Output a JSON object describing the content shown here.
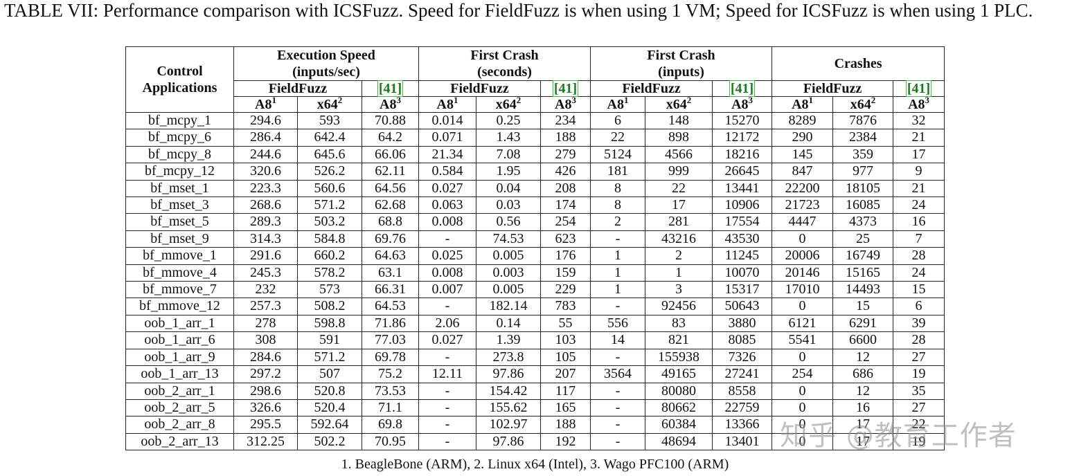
{
  "caption": "TABLE VII: Performance comparison with ICSFuzz. Speed for FieldFuzz is when using 1 VM; Speed for ICSFuzz is when using 1 PLC.",
  "table": {
    "row_header": "Control Applications",
    "groups": [
      {
        "title": "Execution Speed (inputs/sec)",
        "fieldfuzz": "FieldFuzz",
        "ref": "[41]"
      },
      {
        "title": "First Crash (seconds)",
        "fieldfuzz": "FieldFuzz",
        "ref": "[41]"
      },
      {
        "title": "First Crash (inputs)",
        "fieldfuzz": "FieldFuzz",
        "ref": "[41]"
      },
      {
        "title": "Crashes",
        "fieldfuzz": "FieldFuzz",
        "ref": "[41]"
      }
    ],
    "platforms": [
      {
        "name": "A8",
        "sup": "1"
      },
      {
        "name": "x64",
        "sup": "2"
      },
      {
        "name": "A8",
        "sup": "3"
      }
    ],
    "rows": [
      [
        "bf_mcpy_1",
        "294.6",
        "593",
        "70.88",
        "0.014",
        "0.25",
        "234",
        "6",
        "148",
        "15270",
        "8289",
        "7876",
        "32"
      ],
      [
        "bf_mcpy_6",
        "286.4",
        "642.4",
        "64.2",
        "0.071",
        "1.43",
        "188",
        "22",
        "898",
        "12172",
        "290",
        "2384",
        "21"
      ],
      [
        "bf_mcpy_8",
        "244.6",
        "645.6",
        "66.06",
        "21.34",
        "7.08",
        "279",
        "5124",
        "4566",
        "18216",
        "145",
        "359",
        "17"
      ],
      [
        "bf_mcpy_12",
        "320.6",
        "526.2",
        "62.11",
        "0.584",
        "1.95",
        "426",
        "181",
        "999",
        "26645",
        "847",
        "977",
        "9"
      ],
      [
        "bf_mset_1",
        "223.3",
        "560.6",
        "64.56",
        "0.027",
        "0.04",
        "208",
        "8",
        "22",
        "13441",
        "22200",
        "18105",
        "21"
      ],
      [
        "bf_mset_3",
        "268.6",
        "571.2",
        "62.68",
        "0.063",
        "0.03",
        "174",
        "8",
        "17",
        "10906",
        "21723",
        "16085",
        "24"
      ],
      [
        "bf_mset_5",
        "289.3",
        "503.2",
        "68.8",
        "0.008",
        "0.56",
        "254",
        "2",
        "281",
        "17554",
        "4447",
        "4373",
        "16"
      ],
      [
        "bf_mset_9",
        "314.3",
        "584.8",
        "69.76",
        "-",
        "74.53",
        "623",
        "-",
        "43216",
        "43530",
        "0",
        "25",
        "7"
      ],
      [
        "bf_mmove_1",
        "291.6",
        "660.2",
        "64.63",
        "0.025",
        "0.005",
        "176",
        "1",
        "2",
        "11245",
        "20006",
        "16749",
        "28"
      ],
      [
        "bf_mmove_4",
        "245.3",
        "578.2",
        "63.1",
        "0.008",
        "0.003",
        "159",
        "1",
        "1",
        "10070",
        "20146",
        "15165",
        "24"
      ],
      [
        "bf_mmove_7",
        "232",
        "573",
        "66.31",
        "0.007",
        "0.005",
        "229",
        "1",
        "3",
        "15317",
        "17010",
        "14493",
        "15"
      ],
      [
        "bf_mmove_12",
        "257.3",
        "508.2",
        "64.53",
        "-",
        "182.14",
        "783",
        "-",
        "92456",
        "50643",
        "0",
        "15",
        "6"
      ],
      [
        "oob_1_arr_1",
        "278",
        "598.8",
        "71.86",
        "2.06",
        "0.14",
        "55",
        "556",
        "83",
        "3880",
        "6121",
        "6291",
        "39"
      ],
      [
        "oob_1_arr_6",
        "308",
        "591",
        "77.03",
        "0.027",
        "1.39",
        "103",
        "14",
        "821",
        "8085",
        "5541",
        "6600",
        "28"
      ],
      [
        "oob_1_arr_9",
        "284.6",
        "571.2",
        "69.78",
        "-",
        "273.8",
        "105",
        "-",
        "155938",
        "7326",
        "0",
        "12",
        "27"
      ],
      [
        "oob_1_arr_13",
        "297.2",
        "507",
        "75.2",
        "12.11",
        "97.86",
        "207",
        "3564",
        "49165",
        "27241",
        "254",
        "686",
        "19"
      ],
      [
        "oob_2_arr_1",
        "298.6",
        "520.8",
        "73.53",
        "-",
        "154.42",
        "117",
        "-",
        "80080",
        "8558",
        "0",
        "12",
        "35"
      ],
      [
        "oob_2_arr_5",
        "326.6",
        "520.4",
        "71.1",
        "-",
        "155.62",
        "165",
        "-",
        "80662",
        "22759",
        "0",
        "16",
        "27"
      ],
      [
        "oob_2_arr_8",
        "295.5",
        "592.64",
        "69.8",
        "-",
        "102.97",
        "188",
        "-",
        "60384",
        "13366",
        "0",
        "17",
        "22"
      ],
      [
        "oob_2_arr_13",
        "312.25",
        "502.2",
        "70.95",
        "-",
        "97.86",
        "192",
        "-",
        "48694",
        "13401",
        "0",
        "17",
        "19"
      ]
    ]
  },
  "footnote": "1. BeagleBone (ARM), 2. Linux x64 (Intel), 3. Wago PFC100 (ARM)",
  "watermark": "知乎 @教育工作者"
}
